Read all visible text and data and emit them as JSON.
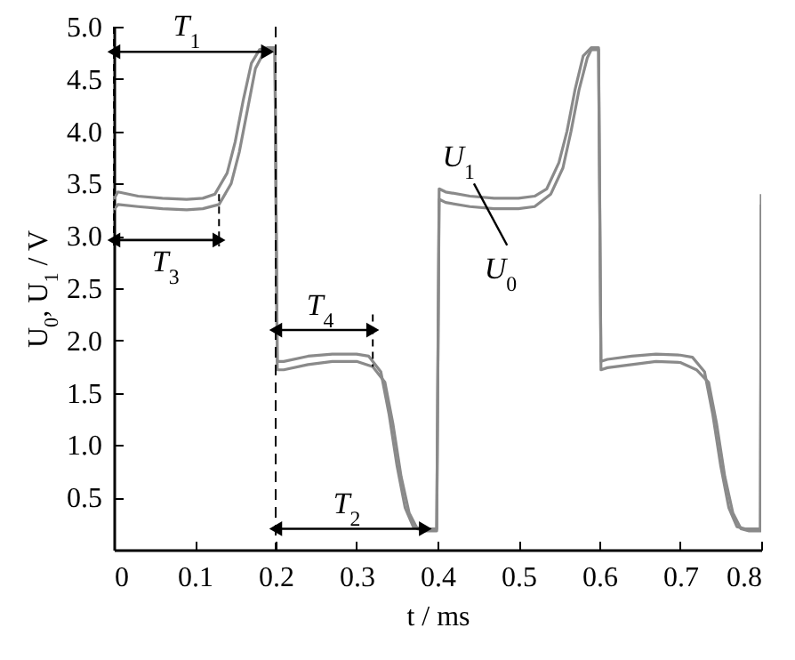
{
  "chart_data": {
    "type": "line",
    "xlabel": "t / ms",
    "ylabel": "U$_{0}$, U$_{1}$ / V",
    "xlim": [
      0,
      0.8
    ],
    "xticks": [
      {
        "value": 0,
        "label": "0"
      },
      0.1,
      0.2,
      0.3,
      0.4,
      0.5,
      0.6,
      0.7,
      0.8
    ],
    "ylim": [
      0,
      5
    ],
    "yticks": [
      0.5,
      {
        "value": 1,
        "label": "1.0"
      },
      1.5,
      {
        "value": 2,
        "label": "2.0"
      },
      2.5,
      {
        "value": 3,
        "label": "3.0"
      },
      3.5,
      {
        "value": 4,
        "label": "4.0"
      },
      4.5,
      {
        "value": 5,
        "label": "5.0"
      }
    ],
    "grid": false,
    "line_style": "solid",
    "marker": "none",
    "series": [
      {
        "color": "#8a8a8a",
        "x": [
          0,
          0.005,
          0.03,
          0.06,
          0.09,
          0.11,
          0.125,
          0.14,
          0.15,
          0.16,
          0.17,
          0.18,
          0.19,
          0.199,
          0.202,
          0.21,
          0.24,
          0.27,
          0.3,
          0.315,
          0.33,
          0.34,
          0.35,
          0.36,
          0.37,
          0.38,
          0.399,
          0.402,
          0.41,
          0.44,
          0.47,
          0.5,
          0.52,
          0.535,
          0.55,
          0.56,
          0.57,
          0.58,
          0.59,
          0.599,
          0.602,
          0.61,
          0.64,
          0.67,
          0.7,
          0.715,
          0.73,
          0.74,
          0.75,
          0.76,
          0.77,
          0.78,
          0.799,
          0.8
        ],
        "values": [
          3.35,
          3.42,
          3.38,
          3.36,
          3.35,
          3.36,
          3.4,
          3.6,
          3.9,
          4.3,
          4.65,
          4.78,
          4.8,
          4.8,
          1.8,
          1.8,
          1.85,
          1.87,
          1.87,
          1.85,
          1.7,
          1.3,
          0.8,
          0.4,
          0.22,
          0.2,
          0.2,
          3.45,
          3.42,
          3.38,
          3.36,
          3.36,
          3.38,
          3.45,
          3.7,
          4.0,
          4.4,
          4.72,
          4.8,
          4.8,
          1.8,
          1.82,
          1.85,
          1.87,
          1.86,
          1.84,
          1.7,
          1.3,
          0.8,
          0.4,
          0.22,
          0.2,
          0.2,
          3.4
        ]
      },
      {
        "color": "#8a8a8a",
        "x": [
          0,
          0.005,
          0.03,
          0.06,
          0.09,
          0.11,
          0.13,
          0.145,
          0.155,
          0.165,
          0.175,
          0.185,
          0.19,
          0.199,
          0.202,
          0.21,
          0.24,
          0.27,
          0.3,
          0.32,
          0.335,
          0.345,
          0.355,
          0.365,
          0.375,
          0.385,
          0.399,
          0.402,
          0.41,
          0.44,
          0.47,
          0.5,
          0.52,
          0.54,
          0.555,
          0.565,
          0.575,
          0.585,
          0.59,
          0.599,
          0.602,
          0.61,
          0.64,
          0.67,
          0.7,
          0.72,
          0.735,
          0.745,
          0.755,
          0.765,
          0.775,
          0.785,
          0.799,
          0.8
        ],
        "values": [
          3.25,
          3.3,
          3.28,
          3.26,
          3.25,
          3.26,
          3.3,
          3.5,
          3.8,
          4.2,
          4.6,
          4.75,
          4.78,
          4.78,
          1.72,
          1.72,
          1.77,
          1.8,
          1.8,
          1.75,
          1.6,
          1.2,
          0.7,
          0.35,
          0.2,
          0.18,
          0.18,
          3.35,
          3.32,
          3.28,
          3.26,
          3.26,
          3.28,
          3.4,
          3.65,
          4.0,
          4.4,
          4.7,
          4.78,
          4.78,
          1.72,
          1.74,
          1.77,
          1.8,
          1.79,
          1.72,
          1.6,
          1.2,
          0.7,
          0.35,
          0.2,
          0.18,
          0.18,
          3.3
        ]
      }
    ],
    "ref_lines": [
      {
        "axis": "x",
        "value": 0.2,
        "color": "#000000",
        "line_style": "dashed"
      }
    ],
    "annotations": [
      "T$_{1}$",
      "T$_{3}$",
      "T$_{4}$",
      "T$_{2}$",
      "U$_{1}$",
      "U$_{0}$"
    ]
  }
}
